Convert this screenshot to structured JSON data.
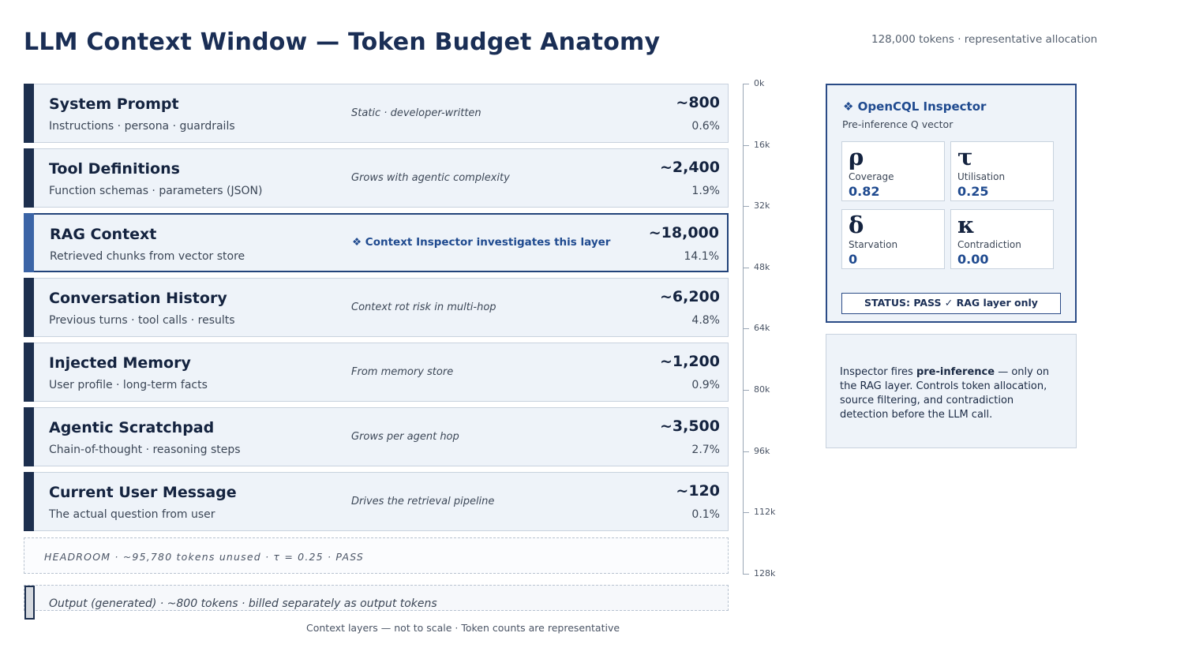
{
  "header": {
    "title": "LLM Context Window  —  Token Budget Anatomy",
    "subtitle": "128,000 tokens  ·  representative allocation"
  },
  "layers": [
    {
      "name": "System Prompt",
      "desc": "Instructions · persona · guardrails",
      "note": "Static · developer-written",
      "tokens": "~800",
      "pct": "0.6%"
    },
    {
      "name": "Tool Definitions",
      "desc": "Function schemas · parameters (JSON)",
      "note": "Grows with agentic complexity",
      "tokens": "~2,400",
      "pct": "1.9%"
    },
    {
      "name": "RAG Context",
      "desc": "Retrieved chunks from vector store",
      "note": "❖  Context Inspector investigates this layer",
      "tokens": "~18,000",
      "pct": "14.1%"
    },
    {
      "name": "Conversation History",
      "desc": "Previous turns · tool calls · results",
      "note": "Context rot risk in multi-hop",
      "tokens": "~6,200",
      "pct": "4.8%"
    },
    {
      "name": "Injected Memory",
      "desc": "User profile · long-term facts",
      "note": "From memory store",
      "tokens": "~1,200",
      "pct": "0.9%"
    },
    {
      "name": "Agentic Scratchpad",
      "desc": "Chain-of-thought · reasoning steps",
      "note": "Grows per agent hop",
      "tokens": "~3,500",
      "pct": "2.7%"
    },
    {
      "name": "Current User Message",
      "desc": "The actual question from user",
      "note": "Drives the retrieval pipeline",
      "tokens": "~120",
      "pct": "0.1%"
    }
  ],
  "headroom": "HEADROOM  ·  ~95,780 tokens unused  ·  τ = 0.25  ·  PASS",
  "output": "Output (generated)  ·  ~800 tokens  ·  billed separately as output tokens",
  "footer": "Context layers — not to scale  ·  Token counts are representative",
  "axis": {
    "ticks": [
      "0k",
      "16k",
      "32k",
      "48k",
      "64k",
      "80k",
      "96k",
      "112k",
      "128k"
    ]
  },
  "inspector": {
    "title": "❖  OpenCQL Inspector",
    "subtitle": "Pre-inference Q vector",
    "metrics": [
      {
        "symbol": "ρ",
        "label": "Coverage",
        "value": "0.82"
      },
      {
        "symbol": "τ",
        "label": "Utilisation",
        "value": "0.25"
      },
      {
        "symbol": "δ",
        "label": "Starvation",
        "value": "0"
      },
      {
        "symbol": "κ",
        "label": "Contradiction",
        "value": "0.00"
      }
    ],
    "status": "STATUS: PASS  ✓  RAG layer only"
  },
  "info": {
    "prefix": "Inspector fires ",
    "bold": "pre-inference",
    "suffix": " — only on the RAG layer. Controls token allocation, source filtering, and contradiction detection before the LLM call."
  },
  "colors": {
    "layer_bar": "#1d2f4e",
    "highlight_bar": "#3b64a6",
    "accent": "#1f4a8f",
    "panel_bg": "#eef3f9"
  }
}
